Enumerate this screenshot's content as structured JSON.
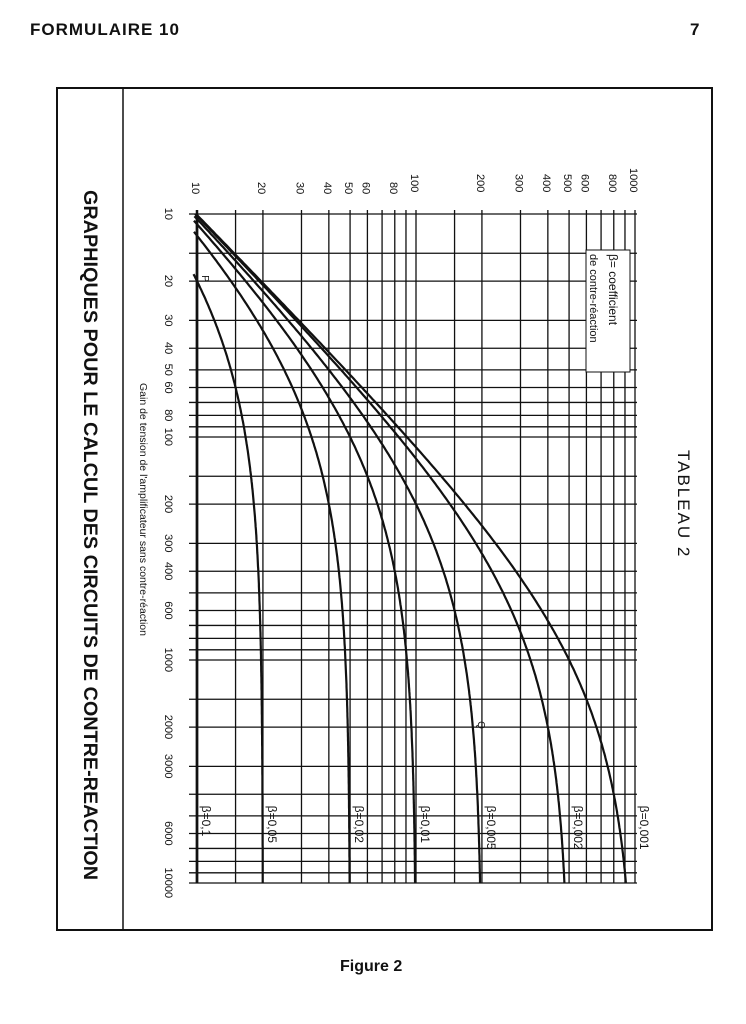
{
  "header": {
    "left": "FORMULAIRE 10",
    "page_number": "7"
  },
  "caption": "Figure 2",
  "chart_data": {
    "type": "line",
    "title": "GRAPHIQUES POUR LE CALCUL DES CIRCUITS DE CONTRE-REACTION",
    "table_label": "TABLEAU 2",
    "xlabel": "Gain de tension de l'amplificateur sans contre-réaction",
    "ylabel": "",
    "legend": {
      "symbol": "β=",
      "line1": "coefficient",
      "line2": "de contre-réaction"
    },
    "x_axis": {
      "scale": "log",
      "range": [
        10,
        10000
      ],
      "orientation": "vertical-down",
      "ticks": [
        "10",
        "20",
        "30",
        "40",
        "50",
        "60",
        "80",
        "100",
        "200",
        "300",
        "400",
        "600",
        "1000",
        "2000",
        "3000",
        "6000",
        "10000"
      ],
      "gridlines": [
        10,
        15,
        20,
        30,
        40,
        50,
        60,
        70,
        80,
        90,
        100,
        150,
        200,
        300,
        400,
        500,
        600,
        700,
        800,
        900,
        1000,
        1500,
        2000,
        3000,
        4000,
        5000,
        6000,
        7000,
        8000,
        9000,
        10000
      ]
    },
    "y_axis": {
      "scale": "log",
      "range": [
        10,
        1000
      ],
      "orientation": "horizontal",
      "ticks": [
        "10",
        "20",
        "30",
        "40",
        "50",
        "60",
        "80",
        "100",
        "200",
        "300",
        "400",
        "500",
        "600",
        "800",
        "1000"
      ],
      "gridlines": [
        10,
        15,
        20,
        30,
        40,
        50,
        60,
        70,
        80,
        90,
        100,
        150,
        200,
        300,
        400,
        500,
        600,
        700,
        800,
        900,
        1000
      ]
    },
    "annotations": [
      {
        "text": "P",
        "x": 20,
        "y": 10
      },
      {
        "text": "Q",
        "x": 2000,
        "y": 182
      }
    ],
    "series": [
      {
        "name": "β=0,1",
        "beta": 0.1,
        "points": [
          [
            10,
            10
          ],
          [
            10000,
            10
          ]
        ]
      },
      {
        "name": "β=0,05",
        "beta": 0.05,
        "points": [
          [
            20,
            10
          ],
          [
            50,
            14.3
          ],
          [
            100,
            16.7
          ],
          [
            200,
            18.2
          ],
          [
            500,
            19.2
          ],
          [
            1000,
            19.6
          ],
          [
            2000,
            19.8
          ],
          [
            5000,
            19.9
          ],
          [
            10000,
            20
          ]
        ]
      },
      {
        "name": "β=0,02",
        "beta": 0.02,
        "points": [
          [
            12.5,
            10
          ],
          [
            20,
            14.3
          ],
          [
            50,
            25
          ],
          [
            100,
            33.3
          ],
          [
            200,
            40
          ],
          [
            500,
            45.5
          ],
          [
            1000,
            47.6
          ],
          [
            2000,
            48.8
          ],
          [
            5000,
            49.5
          ],
          [
            10000,
            49.8
          ]
        ]
      },
      {
        "name": "β=0,01",
        "beta": 0.01,
        "points": [
          [
            11,
            10
          ],
          [
            20,
            16.7
          ],
          [
            50,
            33.3
          ],
          [
            100,
            50
          ],
          [
            200,
            66.7
          ],
          [
            500,
            83.3
          ],
          [
            1000,
            90.9
          ],
          [
            2000,
            95.2
          ],
          [
            5000,
            98
          ],
          [
            10000,
            99
          ]
        ]
      },
      {
        "name": "β=0,005",
        "beta": 0.005,
        "points": [
          [
            10,
            9.5
          ],
          [
            20,
            18.2
          ],
          [
            50,
            40
          ],
          [
            100,
            66.7
          ],
          [
            200,
            100
          ],
          [
            500,
            142.9
          ],
          [
            1000,
            166.7
          ],
          [
            2000,
            181.8
          ],
          [
            5000,
            192.3
          ],
          [
            10000,
            196.1
          ]
        ]
      },
      {
        "name": "β=0,002",
        "beta": 0.002,
        "points": [
          [
            10,
            9.8
          ],
          [
            20,
            19.2
          ],
          [
            50,
            45.5
          ],
          [
            100,
            83.3
          ],
          [
            200,
            142.9
          ],
          [
            500,
            250
          ],
          [
            1000,
            333
          ],
          [
            2000,
            400
          ],
          [
            5000,
            455
          ],
          [
            10000,
            476
          ]
        ]
      },
      {
        "name": "β=0,001",
        "beta": 0.001,
        "points": [
          [
            10,
            9.9
          ],
          [
            20,
            19.6
          ],
          [
            50,
            47.6
          ],
          [
            100,
            90.9
          ],
          [
            200,
            166.7
          ],
          [
            500,
            333
          ],
          [
            1000,
            500
          ],
          [
            2000,
            667
          ],
          [
            5000,
            833
          ],
          [
            10000,
            909
          ]
        ]
      }
    ]
  }
}
